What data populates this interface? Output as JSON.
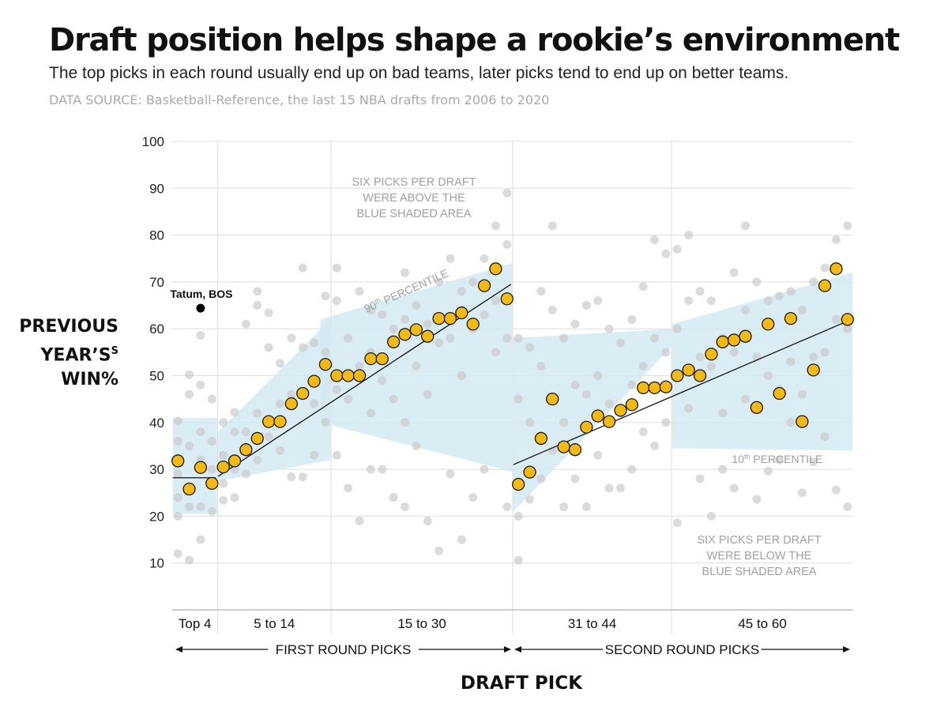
{
  "header": {
    "title": "Draft position helps shape a rookie’s environment",
    "subtitle": "The top picks in each round usually end up on bad teams, later picks tend to end up on better teams.",
    "source": "DATA SOURCE: Basketball-Reference, the last 15 NBA drafts from 2006 to 2020"
  },
  "colors": {
    "average_dot": "#f5b914",
    "average_dot_stroke": "#1a1a1a",
    "individual_pick_dot": "#c8c8c8",
    "band_fill": "#d4e9f2",
    "trend_line": "#111111",
    "highlight_dot": "#000000",
    "gridline": "#dddddd"
  },
  "chart_data": {
    "type": "scatter",
    "title": "Draft position helps shape a rookie’s environment",
    "xlabel": "DRAFT PICK",
    "ylabel_lines": [
      "PREVIOUS",
      "YEAR’S",
      "WIN%"
    ],
    "ylabel_sup": "S",
    "xlim": [
      0.5,
      60.5
    ],
    "ylim": [
      0,
      100
    ],
    "yticks": [
      10,
      20,
      30,
      40,
      50,
      60,
      70,
      80,
      90,
      100
    ],
    "grid": true,
    "categories": [
      {
        "label": "Top 4",
        "from": 1,
        "to": 4
      },
      {
        "label": "5 to 14",
        "from": 5,
        "to": 14
      },
      {
        "label": "15 to 30",
        "from": 15,
        "to": 30
      },
      {
        "label": "31 to 44",
        "from": 31,
        "to": 44
      },
      {
        "label": "45 to 60",
        "from": 45,
        "to": 60
      }
    ],
    "rounds": [
      {
        "label": "FIRST ROUND PICKS",
        "from": 1,
        "to": 30
      },
      {
        "label": "SECOND ROUND PICKS",
        "from": 31,
        "to": 60
      }
    ],
    "average_by_pick": {
      "name": "Average previous year's win% by pick",
      "x": [
        1,
        2,
        3,
        4,
        5,
        6,
        7,
        8,
        9,
        10,
        11,
        12,
        13,
        14,
        15,
        16,
        17,
        18,
        19,
        20,
        21,
        22,
        23,
        24,
        25,
        26,
        27,
        28,
        29,
        30,
        31,
        32,
        33,
        34,
        35,
        36,
        37,
        38,
        39,
        40,
        41,
        42,
        43,
        44,
        45,
        46,
        47,
        48,
        49,
        50,
        51,
        52,
        53,
        54,
        55,
        56,
        57,
        58,
        59,
        60
      ],
      "y": [
        31.8,
        25.8,
        30.4,
        27.0,
        30.5,
        31.8,
        34.2,
        36.6,
        40.2,
        40.2,
        44.0,
        46.2,
        48.8,
        52.4,
        50.0,
        50.0,
        50.0,
        53.6,
        53.6,
        57.2,
        58.8,
        59.8,
        58.4,
        62.2,
        62.2,
        63.4,
        61.0,
        69.2,
        72.8,
        66.4,
        26.8,
        29.4,
        36.6,
        45.0,
        34.8,
        34.2,
        39.0,
        41.4,
        40.2,
        42.6,
        43.8,
        47.4,
        47.4,
        47.6,
        50.0,
        51.2,
        50.0,
        54.6,
        57.2,
        57.6,
        58.4,
        43.2,
        61.0,
        46.2,
        62.2,
        40.2,
        51.2,
        69.2,
        72.8,
        62.0
      ]
    },
    "trend_lines": [
      {
        "segment": "Top 4",
        "x": [
          1,
          4
        ],
        "y": [
          28.2,
          28.2
        ]
      },
      {
        "segment": "5 to 30",
        "x": [
          5,
          30
        ],
        "y": [
          28.5,
          69.5
        ]
      },
      {
        "segment": "31 to 60",
        "x": [
          31,
          60
        ],
        "y": [
          31.0,
          62.0
        ]
      }
    ],
    "percentile_band": {
      "upper_label": "90th PERCENTILE",
      "lower_label": "10th PERCENTILE",
      "segments": [
        {
          "x": [
            1,
            4
          ],
          "upper": [
            41,
            41
          ],
          "lower": [
            20.5,
            20.5
          ]
        },
        {
          "x": [
            5,
            14
          ],
          "upper": [
            38,
            62
          ],
          "lower": [
            27.5,
            32
          ]
        },
        {
          "x": [
            14,
            30
          ],
          "upper": [
            62,
            74
          ],
          "lower": [
            40,
            29.5
          ]
        },
        {
          "x": [
            31,
            44
          ],
          "upper": [
            58,
            60
          ],
          "lower": [
            21,
            56
          ]
        },
        {
          "x": [
            45,
            60
          ],
          "upper": [
            61,
            72
          ],
          "lower": [
            34.5,
            34
          ]
        }
      ]
    },
    "individual_picks_sample": {
      "name": "Individual picks (last 15 drafts, sample)",
      "x": [
        1,
        1,
        1,
        1,
        1,
        1,
        2,
        2,
        2,
        2,
        2,
        3,
        3,
        3,
        3,
        3,
        3,
        4,
        4,
        4,
        4,
        5,
        5,
        5,
        5,
        6,
        6,
        6,
        6,
        7,
        7,
        7,
        8,
        8,
        8,
        8,
        9,
        9,
        9,
        10,
        10,
        10,
        11,
        11,
        11,
        12,
        12,
        12,
        13,
        13,
        13,
        14,
        14,
        14,
        15,
        15,
        15,
        15,
        16,
        16,
        16,
        17,
        17,
        17,
        18,
        18,
        18,
        18,
        19,
        19,
        19,
        20,
        20,
        20,
        21,
        21,
        21,
        21,
        22,
        22,
        22,
        23,
        23,
        23,
        24,
        24,
        24,
        25,
        25,
        25,
        26,
        26,
        26,
        27,
        27,
        27,
        28,
        28,
        28,
        29,
        29,
        29,
        30,
        30,
        30,
        30,
        31,
        31,
        31,
        31,
        32,
        32,
        32,
        33,
        33,
        33,
        34,
        34,
        34,
        35,
        35,
        35,
        36,
        36,
        36,
        37,
        37,
        37,
        38,
        38,
        38,
        39,
        39,
        39,
        40,
        40,
        40,
        41,
        41,
        41,
        42,
        42,
        42,
        43,
        43,
        43,
        44,
        44,
        44,
        45,
        45,
        45,
        46,
        46,
        46,
        47,
        47,
        47,
        48,
        48,
        48,
        49,
        49,
        49,
        50,
        50,
        50,
        51,
        51,
        51,
        52,
        52,
        52,
        53,
        53,
        53,
        54,
        54,
        54,
        55,
        55,
        55,
        56,
        56,
        56,
        57,
        57,
        57,
        58,
        58,
        58,
        59,
        59,
        59,
        60,
        60,
        60
      ],
      "y": [
        40.3,
        36.0,
        29.0,
        24.0,
        20.0,
        12.0,
        50.2,
        46.0,
        35.0,
        22.0,
        10.6,
        58.6,
        48.0,
        38.0,
        32.0,
        22.0,
        15.0,
        45.0,
        36.0,
        30.0,
        21.0,
        40.0,
        33.0,
        27.0,
        23.4,
        42.2,
        38.0,
        30.0,
        24.0,
        61.0,
        38.0,
        29.0,
        68.0,
        65.0,
        42.0,
        32.0,
        63.4,
        56.0,
        37.0,
        52.6,
        44.0,
        34.0,
        58.0,
        46.0,
        28.4,
        73.0,
        56.0,
        28.4,
        57.0,
        44.0,
        33.0,
        67.0,
        55.0,
        40.0,
        73.0,
        66.0,
        47.0,
        33.0,
        58.0,
        45.0,
        26.0,
        68.0,
        52.0,
        19.0,
        64.0,
        55.0,
        42.0,
        30.0,
        63.0,
        49.0,
        30.0,
        60.0,
        45.0,
        24.0,
        72.0,
        62.0,
        40.0,
        22.0,
        65.0,
        52.0,
        35.0,
        61.0,
        46.0,
        19.0,
        70.0,
        57.0,
        12.6,
        75.0,
        58.0,
        29.0,
        68.0,
        50.0,
        15.0,
        70.0,
        60.0,
        24.0,
        75.0,
        63.0,
        30.0,
        82.0,
        66.0,
        55.0,
        89.0,
        78.0,
        58.0,
        22.0,
        58.0,
        45.0,
        20.0,
        10.6,
        56.0,
        40.0,
        23.6,
        68.0,
        52.0,
        28.0,
        82.0,
        64.0,
        34.0,
        58.0,
        40.0,
        22.0,
        61.0,
        48.0,
        28.0,
        65.0,
        46.0,
        22.0,
        66.0,
        50.0,
        33.0,
        60.0,
        44.0,
        26.0,
        57.0,
        42.0,
        26.0,
        62.0,
        48.0,
        30.0,
        69.0,
        52.0,
        38.0,
        79.0,
        58.0,
        35.0,
        76.0,
        55.0,
        40.0,
        77.0,
        60.0,
        18.6,
        80.0,
        66.0,
        43.0,
        68.0,
        54.0,
        28.0,
        66.0,
        52.0,
        20.0,
        58.0,
        42.0,
        30.0,
        72.0,
        55.0,
        26.0,
        82.0,
        64.0,
        45.0,
        70.0,
        54.0,
        23.6,
        66.0,
        50.0,
        29.6,
        67.0,
        47.0,
        32.0,
        68.0,
        53.0,
        40.0,
        64.0,
        46.0,
        25.0,
        70.0,
        54.0,
        31.6,
        73.0,
        55.0,
        37.0,
        79.0,
        62.0,
        25.6,
        82.0,
        60.0,
        22.0
      ]
    },
    "highlight": {
      "label": "Tatum, BOS",
      "x": 3,
      "y": 64.4
    },
    "annotations": [
      {
        "id": "above",
        "lines": [
          "SIX PICKS PER DRAFT",
          "WERE ABOVE THE",
          "BLUE SHADED AREA"
        ]
      },
      {
        "id": "below",
        "lines": [
          "SIX PICKS PER DRAFT",
          "WERE BELOW THE",
          "BLUE SHADED AREA"
        ]
      }
    ]
  }
}
